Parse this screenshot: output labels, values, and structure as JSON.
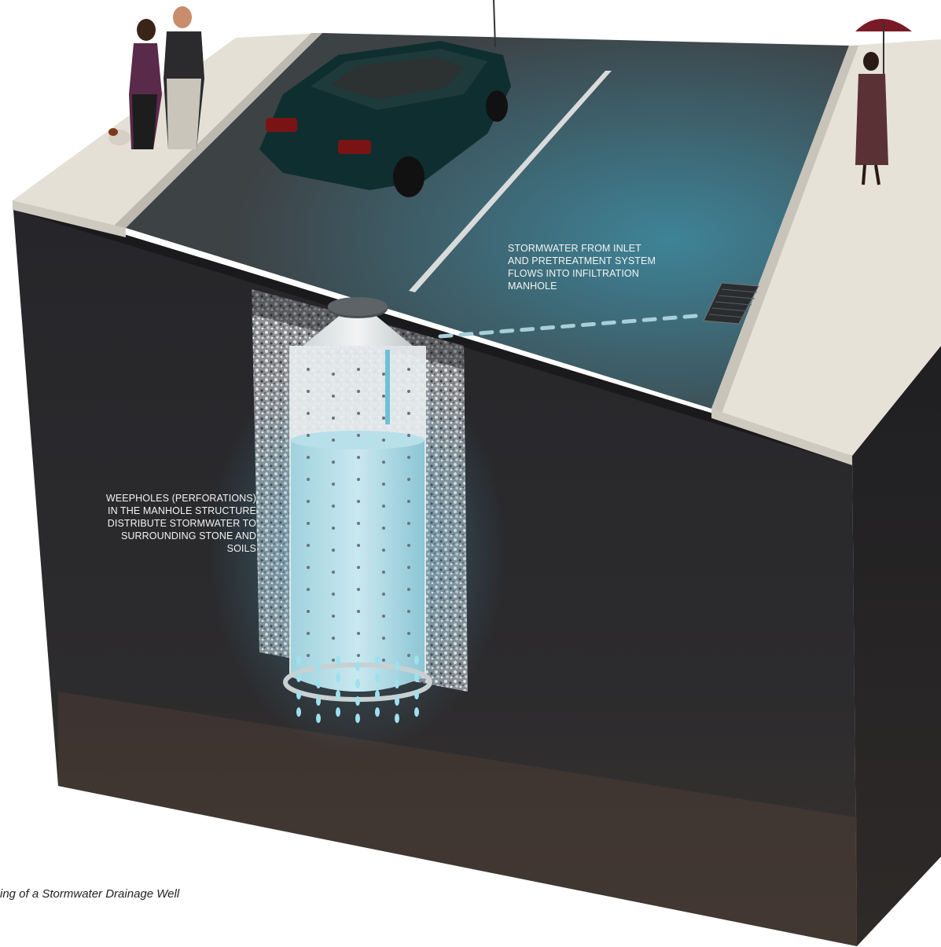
{
  "diagram": {
    "caption": "ing of a Stormwater Drainage Well",
    "annotations": {
      "inlet_flow": [
        "STORMWATER FROM INLET",
        "AND PRETREATMENT SYSTEM",
        "FLOWS INTO INFILTRATION",
        "MANHOLE"
      ],
      "weepholes": [
        "WEEPHOLES (PERFORATIONS)",
        "IN THE MANHOLE STRUCTURE",
        "DISTRIBUTE STORMWATER TO",
        "SURROUNDING STONE AND",
        "SOILS"
      ]
    }
  },
  "colors": {
    "soil": "#2b2a2c",
    "asphalt": "#3d4245",
    "water": "#5aa8bf",
    "sidewalk": "#e4e0d6",
    "stone": "#c9c9c9"
  }
}
